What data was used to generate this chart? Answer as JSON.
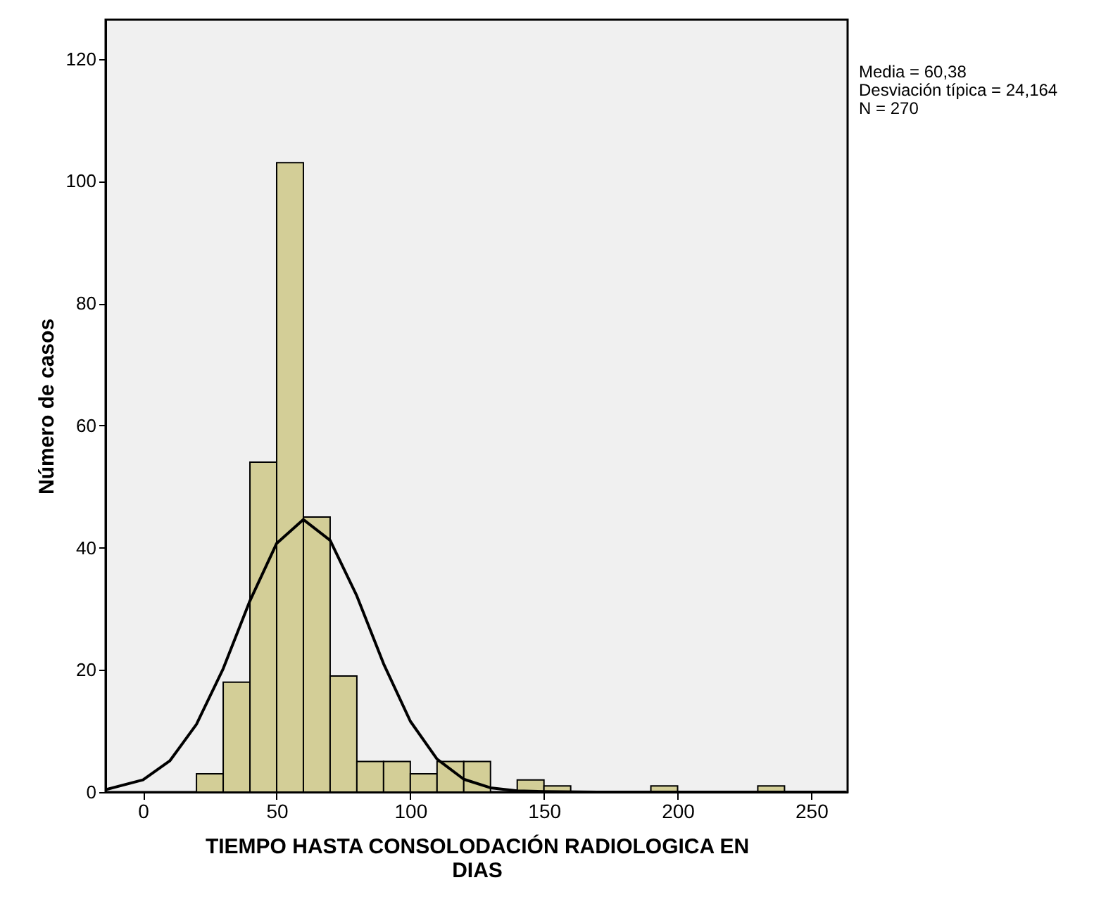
{
  "chart_data": {
    "type": "histogram",
    "xlabel": "TIEMPO HASTA CONSOLODACIÓN RADIOLOGICA EN DIAS",
    "ylabel": "Número de casos",
    "bins": [
      20,
      30,
      40,
      50,
      60,
      70,
      80,
      90,
      100,
      110,
      120,
      130,
      140,
      150,
      160,
      170,
      180,
      190,
      200,
      210,
      220,
      230,
      240
    ],
    "values": [
      3,
      18,
      54,
      103,
      45,
      19,
      5,
      5,
      3,
      5,
      5,
      0,
      2,
      1,
      0,
      0,
      0,
      1,
      0,
      0,
      0,
      1
    ],
    "color": "#d3ce97",
    "series": [
      {
        "type": "line",
        "color": "#000000",
        "x": [
          -14,
          0,
          10,
          20,
          30,
          40,
          50,
          60,
          70,
          80,
          90,
          100,
          110,
          120,
          130,
          140,
          150,
          170,
          200,
          263
        ],
        "values": [
          0.4,
          2.0,
          5.1,
          11.1,
          20.2,
          31.3,
          40.7,
          44.6,
          41.2,
          32.1,
          21.0,
          11.6,
          5.4,
          2.1,
          0.7,
          0.2,
          0.1,
          0,
          0,
          0
        ]
      }
    ],
    "xlim": [
      -14,
      263.6
    ],
    "xticks": [
      0,
      50,
      100,
      150,
      200,
      250
    ],
    "ylim": [
      0,
      126.4
    ],
    "yticks": [
      0,
      20,
      40,
      60,
      80,
      100,
      120
    ],
    "grid": false,
    "annotations": [
      "Media = 60,38",
      "Desviación típica = 24,164",
      "N = 270"
    ]
  }
}
